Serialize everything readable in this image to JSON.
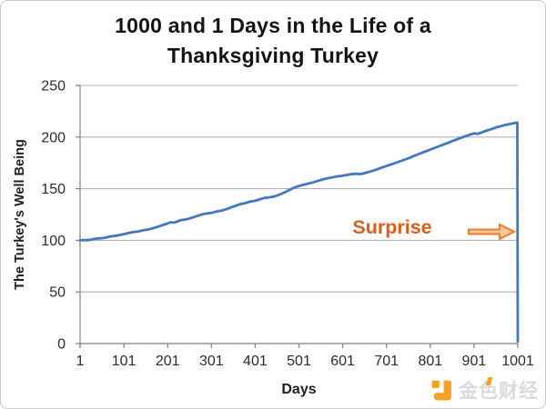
{
  "title": {
    "line1": "1000 and 1 Days in the Life of a",
    "line2": "Thanksgiving Turkey"
  },
  "annotation": {
    "label": "Surprise",
    "color": "#DC5E1C",
    "arrow_icon": "right-block-arrow"
  },
  "watermark": {
    "text": "金色财经",
    "icon": "jinse-finance-logo",
    "icon_color": "#F6A325",
    "text_color": "#DADADA"
  },
  "chart_data": {
    "type": "line",
    "title": "1000 and 1 Days in the Life of a Thanksgiving Turkey",
    "xlabel": "Days",
    "ylabel": "The Turkey's Well Being",
    "xlim": [
      1,
      1001
    ],
    "ylim": [
      0,
      250
    ],
    "x_ticks": [
      1,
      101,
      201,
      301,
      401,
      501,
      601,
      701,
      801,
      901,
      1001
    ],
    "y_ticks": [
      0,
      50,
      100,
      150,
      200,
      250
    ],
    "grid": true,
    "legend": false,
    "colors": {
      "line": "#4377BF",
      "grid": "#B3B3B3",
      "axis": "#7F7F7F",
      "tick_text": "#2B2B2B"
    },
    "series": [
      {
        "name": "The Turkey's Well Being",
        "color": "#4377BF",
        "points": [
          [
            1,
            100
          ],
          [
            10,
            100.3
          ],
          [
            20,
            100.2
          ],
          [
            30,
            101
          ],
          [
            40,
            101.8
          ],
          [
            50,
            102
          ],
          [
            60,
            102.6
          ],
          [
            70,
            103.8
          ],
          [
            80,
            104.2
          ],
          [
            90,
            105
          ],
          [
            101,
            106
          ],
          [
            112,
            107
          ],
          [
            123,
            108
          ],
          [
            134,
            108.6
          ],
          [
            145,
            109.8
          ],
          [
            156,
            110.4
          ],
          [
            167,
            111.6
          ],
          [
            178,
            113
          ],
          [
            189,
            114.6
          ],
          [
            200,
            116.2
          ],
          [
            208,
            117.5
          ],
          [
            216,
            117.2
          ],
          [
            224,
            118.4
          ],
          [
            232,
            119.6
          ],
          [
            240,
            120
          ],
          [
            250,
            121
          ],
          [
            260,
            122.4
          ],
          [
            270,
            123.8
          ],
          [
            280,
            125.2
          ],
          [
            290,
            126
          ],
          [
            301,
            126.6
          ],
          [
            312,
            127.8
          ],
          [
            323,
            128.6
          ],
          [
            334,
            130
          ],
          [
            345,
            131.8
          ],
          [
            356,
            133.4
          ],
          [
            367,
            135
          ],
          [
            378,
            136
          ],
          [
            389,
            137.4
          ],
          [
            400,
            138.2
          ],
          [
            411,
            139.6
          ],
          [
            422,
            141
          ],
          [
            433,
            141.6
          ],
          [
            444,
            142.4
          ],
          [
            455,
            144
          ],
          [
            466,
            146
          ],
          [
            477,
            148.2
          ],
          [
            488,
            150.6
          ],
          [
            499,
            152.4
          ],
          [
            510,
            153.6
          ],
          [
            521,
            154.8
          ],
          [
            532,
            156
          ],
          [
            543,
            157.4
          ],
          [
            554,
            158.8
          ],
          [
            565,
            160
          ],
          [
            576,
            160.8
          ],
          [
            587,
            161.8
          ],
          [
            598,
            162.4
          ],
          [
            609,
            163.2
          ],
          [
            620,
            164
          ],
          [
            631,
            164.4
          ],
          [
            642,
            164.2
          ],
          [
            653,
            165.2
          ],
          [
            664,
            166.6
          ],
          [
            675,
            168
          ],
          [
            686,
            169.8
          ],
          [
            697,
            171.4
          ],
          [
            708,
            173
          ],
          [
            719,
            174.6
          ],
          [
            730,
            176.2
          ],
          [
            741,
            177.8
          ],
          [
            752,
            179.6
          ],
          [
            763,
            181.6
          ],
          [
            774,
            183.4
          ],
          [
            785,
            185.2
          ],
          [
            796,
            187
          ],
          [
            807,
            188.8
          ],
          [
            818,
            190.6
          ],
          [
            829,
            192.4
          ],
          [
            840,
            194.2
          ],
          [
            851,
            196
          ],
          [
            862,
            197.8
          ],
          [
            873,
            199.6
          ],
          [
            884,
            201.2
          ],
          [
            895,
            202.8
          ],
          [
            903,
            203.6
          ],
          [
            910,
            203.2
          ],
          [
            917,
            204.2
          ],
          [
            924,
            205.4
          ],
          [
            931,
            206.4
          ],
          [
            938,
            207.4
          ],
          [
            945,
            208.4
          ],
          [
            952,
            209.4
          ],
          [
            959,
            210.2
          ],
          [
            966,
            211
          ],
          [
            973,
            211.8
          ],
          [
            980,
            212.4
          ],
          [
            987,
            213
          ],
          [
            994,
            213.6
          ],
          [
            1000,
            214
          ],
          [
            1001,
            2
          ]
        ]
      }
    ],
    "annotations": [
      {
        "text": "Surprise",
        "color": "#DC5E1C",
        "target": "vertical drop at day 1001",
        "arrow": "orange block arrow pointing right at the drop"
      }
    ]
  }
}
